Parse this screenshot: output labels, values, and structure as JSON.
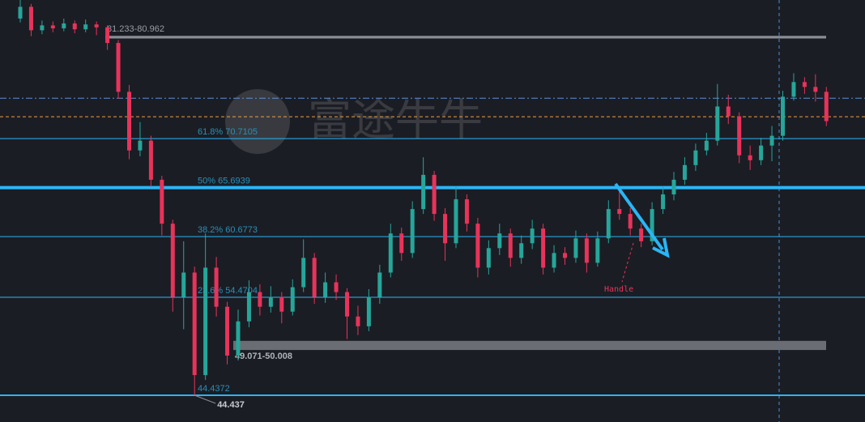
{
  "chart_data": {
    "type": "candlestick",
    "watermark": "富途牛牛",
    "ylim": [
      41.7,
      84.9
    ],
    "up_color": "#26a69a",
    "down_color": "#e8335a",
    "candles": [
      [
        83.0,
        84.9,
        82.6,
        84.2
      ],
      [
        84.2,
        84.5,
        81.2,
        81.8
      ],
      [
        81.8,
        82.8,
        81.4,
        82.3
      ],
      [
        82.3,
        82.7,
        81.6,
        82.0
      ],
      [
        82.0,
        83.0,
        81.7,
        82.5
      ],
      [
        82.5,
        82.8,
        81.5,
        81.9
      ],
      [
        81.9,
        82.9,
        81.6,
        82.4
      ],
      [
        82.4,
        82.7,
        81.3,
        82.1
      ],
      [
        82.1,
        82.3,
        79.8,
        80.5
      ],
      [
        80.5,
        80.8,
        74.8,
        75.5
      ],
      [
        75.5,
        76.2,
        68.6,
        69.5
      ],
      [
        69.5,
        72.4,
        68.9,
        70.5
      ],
      [
        70.5,
        71.0,
        65.8,
        66.5
      ],
      [
        66.5,
        66.9,
        60.8,
        62.0
      ],
      [
        62.0,
        62.4,
        53.0,
        54.5
      ],
      [
        54.5,
        60.2,
        51.2,
        57.0
      ],
      [
        57.0,
        57.6,
        44.44,
        46.5
      ],
      [
        46.5,
        61.0,
        46.0,
        57.5
      ],
      [
        57.5,
        58.6,
        52.5,
        53.5
      ],
      [
        53.5,
        54.0,
        47.6,
        48.5
      ],
      [
        48.5,
        53.2,
        48.0,
        52.0
      ],
      [
        52.0,
        56.2,
        51.4,
        55.0
      ],
      [
        55.0,
        55.8,
        52.6,
        53.5
      ],
      [
        53.5,
        55.6,
        52.9,
        54.5
      ],
      [
        54.5,
        55.0,
        51.8,
        53.0
      ],
      [
        53.0,
        56.3,
        52.6,
        55.5
      ],
      [
        55.5,
        60.4,
        55.0,
        58.5
      ],
      [
        58.5,
        59.0,
        53.8,
        54.5
      ],
      [
        54.5,
        57.0,
        53.9,
        56.0
      ],
      [
        56.0,
        56.8,
        54.2,
        55.0
      ],
      [
        55.0,
        55.4,
        50.2,
        52.5
      ],
      [
        52.5,
        53.6,
        50.6,
        51.5
      ],
      [
        51.5,
        55.3,
        51.0,
        54.5
      ],
      [
        54.5,
        57.8,
        53.8,
        57.0
      ],
      [
        57.0,
        62.0,
        56.5,
        61.0
      ],
      [
        61.0,
        61.6,
        58.2,
        59.0
      ],
      [
        59.0,
        64.3,
        58.5,
        63.5
      ],
      [
        63.5,
        68.8,
        63.0,
        67.0
      ],
      [
        67.0,
        67.4,
        62.3,
        63.0
      ],
      [
        63.0,
        63.6,
        58.2,
        60.0
      ],
      [
        60.0,
        65.8,
        59.5,
        64.5
      ],
      [
        64.5,
        65.0,
        61.2,
        62.0
      ],
      [
        62.0,
        62.6,
        56.5,
        57.5
      ],
      [
        57.5,
        60.3,
        56.8,
        59.5
      ],
      [
        59.5,
        62.0,
        58.8,
        61.0
      ],
      [
        61.0,
        61.5,
        57.6,
        58.5
      ],
      [
        58.5,
        60.8,
        57.9,
        60.0
      ],
      [
        60.0,
        62.4,
        59.4,
        61.5
      ],
      [
        61.5,
        62.0,
        56.8,
        57.5
      ],
      [
        57.5,
        59.8,
        57.0,
        59.0
      ],
      [
        59.0,
        59.6,
        57.8,
        58.5
      ],
      [
        58.5,
        61.3,
        58.0,
        60.5
      ],
      [
        60.5,
        61.0,
        57.0,
        58.0
      ],
      [
        58.0,
        61.2,
        57.6,
        60.5
      ],
      [
        60.5,
        64.4,
        60.0,
        63.5
      ],
      [
        63.5,
        65.5,
        62.4,
        63.0
      ],
      [
        63.0,
        63.6,
        60.8,
        61.5
      ],
      [
        61.5,
        62.0,
        59.6,
        60.2
      ],
      [
        60.2,
        64.2,
        59.8,
        63.5
      ],
      [
        63.5,
        65.8,
        63.0,
        65.0
      ],
      [
        65.0,
        67.3,
        64.4,
        66.5
      ],
      [
        66.5,
        68.8,
        66.0,
        68.0
      ],
      [
        68.0,
        70.2,
        67.4,
        69.5
      ],
      [
        69.5,
        71.3,
        69.0,
        70.5
      ],
      [
        70.5,
        76.3,
        70.0,
        74.0
      ],
      [
        74.0,
        75.2,
        72.2,
        73.0
      ],
      [
        73.0,
        73.4,
        68.2,
        69.0
      ],
      [
        69.0,
        70.0,
        67.5,
        68.5
      ],
      [
        68.5,
        70.8,
        68.0,
        70.0
      ],
      [
        70.0,
        72.0,
        68.4,
        71.0
      ],
      [
        71.0,
        75.6,
        70.5,
        75.0
      ],
      [
        75.0,
        77.4,
        74.6,
        76.5
      ],
      [
        76.5,
        77.0,
        75.3,
        76.0
      ],
      [
        76.0,
        77.3,
        74.5,
        75.5
      ],
      [
        75.5,
        76.0,
        72.0,
        72.5
      ]
    ],
    "fib_levels": [
      {
        "value": 70.7105,
        "label": "61.8% 70.7105",
        "width": 1
      },
      {
        "value": 65.6939,
        "label": "50% 65.6939",
        "width": 4
      },
      {
        "value": 60.6773,
        "label": "38.2% 60.6773",
        "width": 1
      },
      {
        "value": 54.4704,
        "label": "23.6% 54.4704",
        "width": 1
      },
      {
        "value": 44.4372,
        "label": "44.4372",
        "width": 2
      }
    ],
    "fib_color": "#29b6f6",
    "lines": [
      {
        "value": 74.85,
        "color": "#5b8fd6",
        "dash": "8 3 2 3"
      },
      {
        "value": 72.95,
        "color": "#f0a040",
        "dash": "4 3"
      }
    ],
    "zones": [
      {
        "low": 80.962,
        "high": 81.233,
        "label": "81.233-80.962"
      },
      {
        "low": 49.071,
        "high": 50.008,
        "label": "49.071-50.008"
      }
    ],
    "low_marker": {
      "value": 44.437,
      "label": "44.437"
    },
    "annotation": "Handle"
  }
}
